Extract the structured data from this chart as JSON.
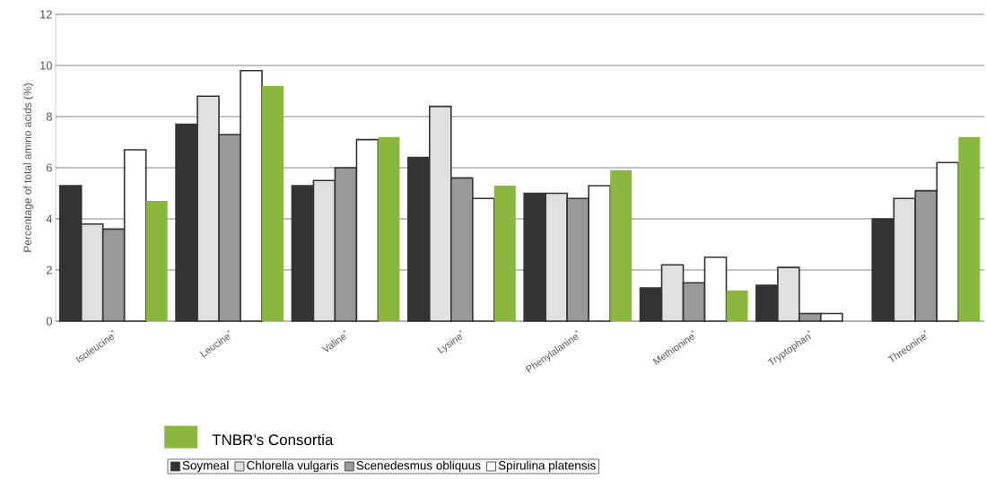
{
  "chart_data": {
    "type": "bar",
    "ylabel": "Percentage of total amino acids (%)",
    "categories": [
      "Isoleucine$^{*}$",
      "Leucine$^{*}$",
      "Valine$^{*}$",
      "Lysine$^{*}$",
      "Phenylalanine$^{*}$",
      "Methionine$^{*}$",
      "Tryptophan$^{*}$",
      "Threonine$^{*}$"
    ],
    "series": [
      {
        "name": "Soymeal",
        "color": "#333333",
        "values": [
          5.3,
          7.7,
          5.3,
          6.4,
          5.0,
          1.3,
          1.4,
          4.0
        ]
      },
      {
        "name": "Chlorella vulgaris",
        "color": "#e0e0e0",
        "values": [
          3.8,
          8.8,
          5.5,
          8.4,
          5.0,
          2.2,
          2.1,
          4.8
        ]
      },
      {
        "name": "Scenedesmus obliquus",
        "color": "#999999",
        "values": [
          3.6,
          7.3,
          6.0,
          5.6,
          4.8,
          1.5,
          0.3,
          5.1
        ]
      },
      {
        "name": "Spirulina platensis",
        "color": "#ffffff",
        "values": [
          6.7,
          9.8,
          7.1,
          4.8,
          5.3,
          2.5,
          0.3,
          6.2
        ]
      },
      {
        "name": "TNBR’s Consortia",
        "color": "#8ab83e",
        "values": [
          4.7,
          9.2,
          7.2,
          5.3,
          5.9,
          1.2,
          null,
          7.2
        ]
      }
    ],
    "ylim": [
      0,
      12
    ],
    "yticks": [
      0,
      2,
      4,
      6,
      8,
      10,
      12
    ],
    "grid": "y",
    "legend": "bottom"
  }
}
